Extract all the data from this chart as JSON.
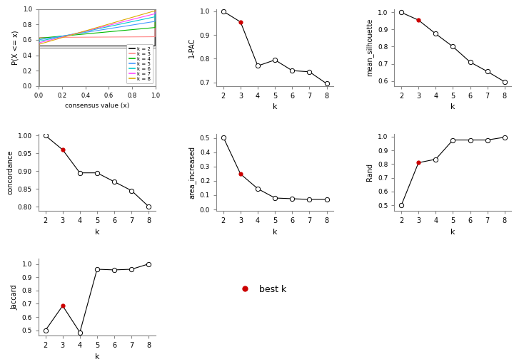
{
  "k_values": [
    2,
    3,
    4,
    5,
    6,
    7,
    8
  ],
  "pac": [
    1.0,
    0.955,
    0.77,
    0.795,
    0.75,
    0.745,
    0.695
  ],
  "best_k_pac": 3,
  "silhouette": [
    1.0,
    0.955,
    0.875,
    0.8,
    0.71,
    0.655,
    0.595
  ],
  "best_k_silhouette": 3,
  "concordance": [
    1.0,
    0.96,
    0.895,
    0.895,
    0.87,
    0.845,
    0.8
  ],
  "best_k_concordance": 3,
  "area_increased": [
    0.505,
    0.248,
    0.145,
    0.08,
    0.075,
    0.07,
    0.07
  ],
  "best_k_area": 3,
  "rand": [
    0.5,
    0.81,
    0.835,
    0.975,
    0.975,
    0.975,
    0.995
  ],
  "best_k_rand": 3,
  "jaccard": [
    0.5,
    0.685,
    0.485,
    0.96,
    0.955,
    0.96,
    1.0
  ],
  "best_k_jaccard": 3,
  "cdf_colors": [
    "#000000",
    "#FF8888",
    "#00BB00",
    "#4499FF",
    "#00CCCC",
    "#FF44FF",
    "#DDAA00"
  ],
  "cdf_labels": [
    "k = 2",
    "k = 3",
    "k = 4",
    "k = 5",
    "k = 6",
    "k = 7",
    "k = 8"
  ],
  "best_k_color": "#CC0000",
  "line_color": "black",
  "bg_color": "#FFFFFF"
}
